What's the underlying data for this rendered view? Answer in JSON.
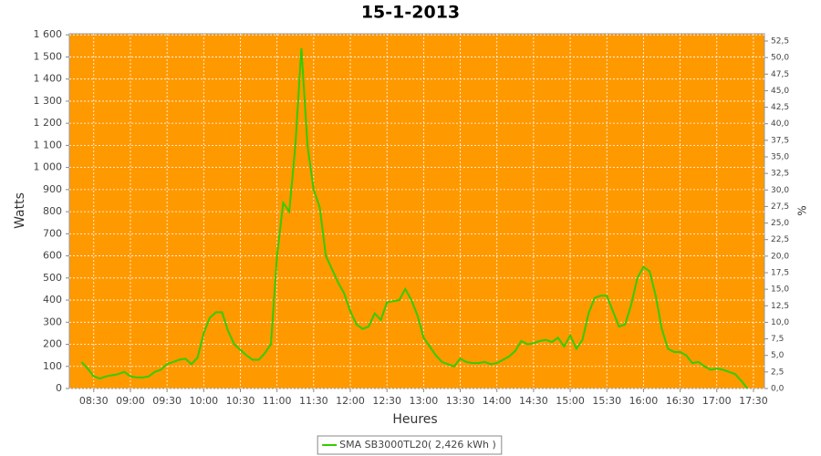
{
  "chart_data": {
    "type": "line",
    "title": "15-1-2013",
    "x_label": "Heures",
    "y_label": "Watts",
    "y2_label": "%",
    "background": "#ff9900",
    "grid": true,
    "legend": "bottom",
    "x": [
      "08:20",
      "08:25",
      "08:30",
      "08:35",
      "08:40",
      "08:45",
      "08:50",
      "08:55",
      "09:00",
      "09:05",
      "09:10",
      "09:15",
      "09:20",
      "09:25",
      "09:30",
      "09:35",
      "09:40",
      "09:45",
      "09:50",
      "09:55",
      "10:00",
      "10:05",
      "10:10",
      "10:15",
      "10:20",
      "10:25",
      "10:30",
      "10:35",
      "10:40",
      "10:45",
      "10:50",
      "10:55",
      "11:00",
      "11:05",
      "11:10",
      "11:15",
      "11:20",
      "11:25",
      "11:30",
      "11:35",
      "11:40",
      "11:45",
      "11:50",
      "11:55",
      "12:00",
      "12:05",
      "12:10",
      "12:15",
      "12:20",
      "12:25",
      "12:30",
      "12:35",
      "12:40",
      "12:45",
      "12:50",
      "12:55",
      "13:00",
      "13:05",
      "13:10",
      "13:15",
      "13:20",
      "13:25",
      "13:30",
      "13:35",
      "13:40",
      "13:45",
      "13:50",
      "13:55",
      "14:00",
      "14:05",
      "14:10",
      "14:15",
      "14:20",
      "14:25",
      "14:30",
      "14:35",
      "14:40",
      "14:45",
      "14:50",
      "14:55",
      "15:00",
      "15:05",
      "15:10",
      "15:15",
      "15:20",
      "15:25",
      "15:30",
      "15:35",
      "15:40",
      "15:45",
      "15:50",
      "15:55",
      "16:00",
      "16:05",
      "16:10",
      "16:15",
      "16:20",
      "16:25",
      "16:30",
      "16:35",
      "16:40",
      "16:45",
      "16:50",
      "16:55",
      "17:00",
      "17:05",
      "17:10",
      "17:15",
      "17:20",
      "17:25"
    ],
    "series": [
      {
        "name": "SMA SB3000TL20( 2,426 kWh )",
        "color": "#33cc00",
        "values": [
          120,
          90,
          55,
          45,
          55,
          60,
          65,
          75,
          55,
          50,
          50,
          55,
          75,
          85,
          110,
          120,
          130,
          135,
          110,
          140,
          250,
          320,
          345,
          345,
          260,
          200,
          175,
          150,
          130,
          130,
          160,
          200,
          600,
          840,
          800,
          1100,
          1540,
          1100,
          900,
          820,
          600,
          540,
          480,
          430,
          350,
          290,
          270,
          280,
          340,
          310,
          390,
          395,
          400,
          450,
          400,
          330,
          230,
          190,
          150,
          120,
          110,
          100,
          135,
          120,
          115,
          115,
          120,
          110,
          115,
          130,
          145,
          170,
          215,
          200,
          205,
          215,
          220,
          210,
          230,
          190,
          240,
          180,
          220,
          340,
          410,
          420,
          420,
          350,
          280,
          290,
          380,
          500,
          550,
          530,
          420,
          270,
          180,
          165,
          165,
          150,
          115,
          120,
          100,
          85,
          90,
          85,
          75,
          65,
          35,
          0
        ]
      }
    ],
    "xlim": [
      "08:10",
      "17:39"
    ],
    "xticks": [
      "08:30",
      "09:00",
      "09:30",
      "10:00",
      "10:30",
      "11:00",
      "11:30",
      "12:00",
      "12:30",
      "13:00",
      "13:30",
      "14:00",
      "14:30",
      "15:00",
      "15:30",
      "16:00",
      "16:30",
      "17:00",
      "17:30"
    ],
    "ylim": [
      0,
      1605
    ],
    "yticks": [
      0,
      100,
      200,
      300,
      400,
      500,
      600,
      700,
      800,
      900,
      {
        "value": 1000,
        "label": "1 000"
      },
      {
        "value": 1100,
        "label": "1 100"
      },
      {
        "value": 1200,
        "label": "1 200"
      },
      {
        "value": 1300,
        "label": "1 300"
      },
      {
        "value": 1400,
        "label": "1 400"
      },
      {
        "value": 1500,
        "label": "1 500"
      },
      {
        "value": 1600,
        "label": "1 600"
      }
    ],
    "y2lim": [
      0,
      53.6
    ],
    "y2ticks": [
      {
        "value": 0,
        "label": "0,0"
      },
      {
        "value": 2.5,
        "label": "2,5"
      },
      {
        "value": 5,
        "label": "5,0"
      },
      {
        "value": 7.5,
        "label": "7,5"
      },
      {
        "value": 10,
        "label": "10,0"
      },
      {
        "value": 12.5,
        "label": "12,5"
      },
      {
        "value": 15,
        "label": "15,0"
      },
      {
        "value": 17.5,
        "label": "17,5"
      },
      {
        "value": 20,
        "label": "20,0"
      },
      {
        "value": 22.5,
        "label": "22,5"
      },
      {
        "value": 25,
        "label": "25,0"
      },
      {
        "value": 27.5,
        "label": "27,5"
      },
      {
        "value": 30,
        "label": "30,0"
      },
      {
        "value": 32.5,
        "label": "32,5"
      },
      {
        "value": 35,
        "label": "35,0"
      },
      {
        "value": 37.5,
        "label": "37,5"
      },
      {
        "value": 40,
        "label": "40,0"
      },
      {
        "value": 42.5,
        "label": "42,5"
      },
      {
        "value": 45,
        "label": "45,0"
      },
      {
        "value": 47.5,
        "label": "47,5"
      },
      {
        "value": 50,
        "label": "50,0"
      },
      {
        "value": 52.5,
        "label": "52,5"
      }
    ]
  }
}
